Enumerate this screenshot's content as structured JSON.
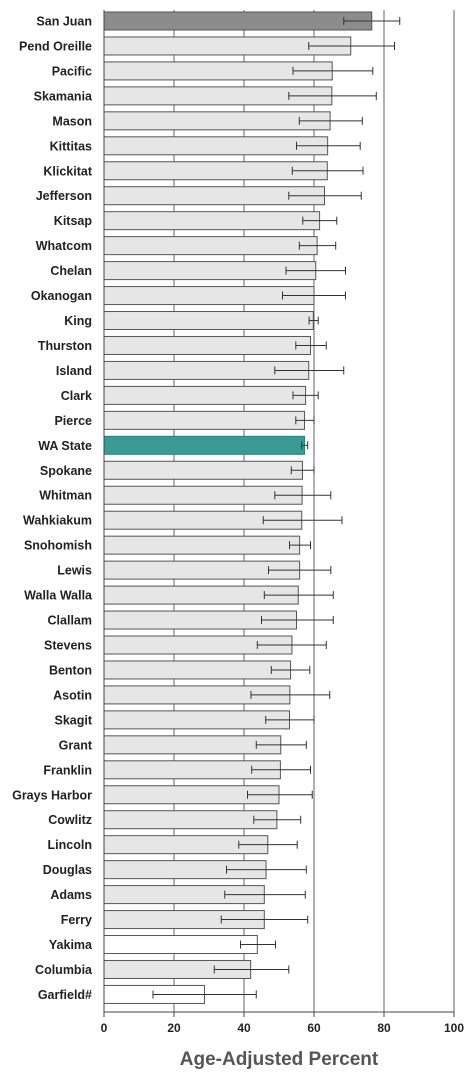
{
  "chart_data": {
    "type": "bar",
    "orientation": "horizontal",
    "title": "",
    "xlabel": "Age-Adjusted Percent",
    "ylabel": "",
    "xlim": [
      0,
      100
    ],
    "xticks": [
      0,
      20,
      40,
      60,
      80,
      100
    ],
    "grid": "vertical",
    "legend": "none",
    "colors": {
      "default_fill": "#e6e6e6",
      "highlight_fill": "#8c8c8c",
      "state_fill": "#3a9b96",
      "light_fill": "#ffffff",
      "bar_stroke": "#555555",
      "grid": "#666666",
      "error_bar": "#333333"
    },
    "categories": [
      "San Juan",
      "Pend Oreille",
      "Pacific",
      "Skamania",
      "Mason",
      "Kittitas",
      "Klickitat",
      "Jefferson",
      "Kitsap",
      "Whatcom",
      "Chelan",
      "Okanogan",
      "King",
      "Thurston",
      "Island",
      "Clark",
      "Pierce",
      "WA State",
      "Spokane",
      "Whitman",
      "Wahkiakum",
      "Snohomish",
      "Lewis",
      "Walla Walla",
      "Clallam",
      "Stevens",
      "Benton",
      "Asotin",
      "Skagit",
      "Grant",
      "Franklin",
      "Grays Harbor",
      "Cowlitz",
      "Lincoln",
      "Douglas",
      "Adams",
      "Ferry",
      "Yakima",
      "Columbia",
      "Garfield#"
    ],
    "values": [
      76.5,
      70.5,
      65.2,
      65.1,
      64.6,
      63.9,
      63.8,
      63.0,
      61.6,
      60.9,
      60.5,
      60.0,
      59.8,
      59.0,
      58.5,
      57.6,
      57.3,
      57.3,
      56.7,
      56.6,
      56.5,
      55.9,
      55.9,
      55.5,
      55.0,
      53.7,
      53.3,
      53.1,
      53.0,
      50.5,
      50.4,
      50.0,
      49.4,
      46.8,
      46.3,
      45.8,
      45.8,
      43.8,
      41.9,
      28.7
    ],
    "error_low": [
      68.5,
      58.5,
      54.0,
      52.8,
      55.8,
      55.0,
      53.8,
      52.8,
      56.8,
      55.8,
      52.0,
      51.0,
      58.6,
      54.8,
      48.8,
      54.0,
      54.8,
      56.5,
      53.5,
      48.8,
      45.5,
      53.0,
      47.0,
      45.8,
      45.0,
      43.8,
      47.8,
      42.0,
      46.2,
      43.5,
      42.2,
      41.0,
      42.8,
      38.5,
      35.0,
      34.5,
      33.5,
      39.0,
      31.5,
      14.0
    ],
    "error_high": [
      84.5,
      83.0,
      76.8,
      77.8,
      73.8,
      73.2,
      74.0,
      73.5,
      66.5,
      66.2,
      69.0,
      69.0,
      61.2,
      63.5,
      68.5,
      61.2,
      60.0,
      58.2,
      60.0,
      64.8,
      68.0,
      59.0,
      64.8,
      65.5,
      65.5,
      63.5,
      58.8,
      64.5,
      60.0,
      57.8,
      59.0,
      59.5,
      56.2,
      55.2,
      57.8,
      57.5,
      58.2,
      49.0,
      52.8,
      43.5
    ],
    "fills": [
      "highlight",
      "default",
      "default",
      "default",
      "default",
      "default",
      "default",
      "default",
      "default",
      "default",
      "default",
      "default",
      "default",
      "default",
      "default",
      "default",
      "default",
      "state",
      "default",
      "default",
      "default",
      "default",
      "default",
      "default",
      "default",
      "default",
      "default",
      "default",
      "default",
      "default",
      "default",
      "default",
      "default",
      "default",
      "default",
      "default",
      "default",
      "light",
      "default",
      "light"
    ]
  }
}
